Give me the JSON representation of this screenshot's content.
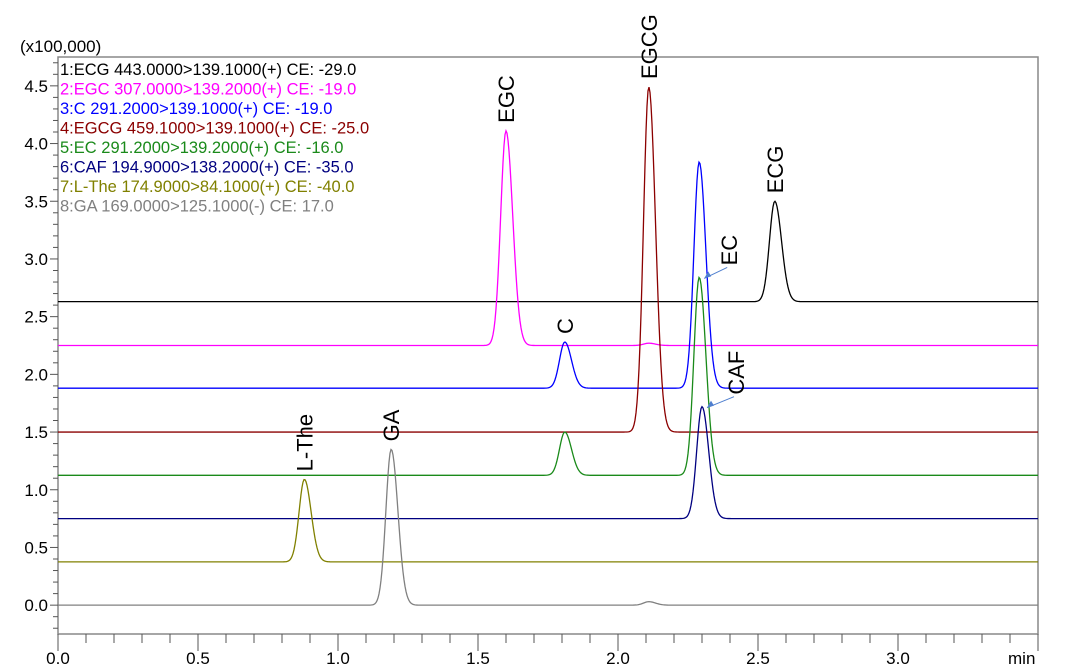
{
  "chart_data": {
    "type": "line",
    "ylabel_scale": "(x100,000)",
    "xunit": "min",
    "xlim": [
      0,
      3.5
    ],
    "ylim": [
      -0.25,
      4.75
    ],
    "xticks": [
      "0.0",
      "0.5",
      "1.0",
      "1.5",
      "2.0",
      "2.5",
      "3.0"
    ],
    "yticks": [
      "0.0",
      "0.5",
      "1.0",
      "1.5",
      "2.0",
      "2.5",
      "3.0",
      "3.5",
      "4.0",
      "4.5"
    ],
    "grid": false,
    "legend_placement": "top-left",
    "series": [
      {
        "name": "1:ECG 443.0000>139.1000(+) CE: -29.0",
        "color": "#000000",
        "baseline": 2.63,
        "peaks": [
          {
            "rt": 2.56,
            "apex": 3.5
          }
        ]
      },
      {
        "name": "2:EGC 307.0000>139.2000(+) CE: -19.0",
        "color": "#ff00ff",
        "baseline": 2.25,
        "peaks": [
          {
            "rt": 1.6,
            "apex": 4.11
          },
          {
            "rt": 2.11,
            "apex": 2.27
          }
        ]
      },
      {
        "name": "3:C 291.2000>139.1000(+) CE: -19.0",
        "color": "#0000ff",
        "baseline": 1.88,
        "peaks": [
          {
            "rt": 1.81,
            "apex": 2.28
          },
          {
            "rt": 2.29,
            "apex": 3.84
          }
        ]
      },
      {
        "name": "4:EGCG 459.1000>139.1000(+) CE: -25.0",
        "color": "#8b0000",
        "baseline": 1.5,
        "peaks": [
          {
            "rt": 2.11,
            "apex": 4.49
          }
        ]
      },
      {
        "name": "5:EC 291.2000>139.2000(+) CE: -16.0",
        "color": "#1a8a1a",
        "baseline": 1.125,
        "peaks": [
          {
            "rt": 1.81,
            "apex": 1.5
          },
          {
            "rt": 2.29,
            "apex": 2.84
          }
        ]
      },
      {
        "name": "6:CAF 194.9000>138.2000(+) CE: -35.0",
        "color": "#000080",
        "baseline": 0.75,
        "peaks": [
          {
            "rt": 2.3,
            "apex": 1.72
          }
        ]
      },
      {
        "name": "7:L-The 174.9000>84.1000(+) CE: -40.0",
        "color": "#808000",
        "baseline": 0.375,
        "peaks": [
          {
            "rt": 0.88,
            "apex": 1.09
          }
        ]
      },
      {
        "name": "8:GA 169.0000>125.1000(-) CE: 17.0",
        "color": "#808080",
        "baseline": 0.0,
        "peaks": [
          {
            "rt": 1.19,
            "apex": 1.35
          },
          {
            "rt": 2.11,
            "apex": 0.03
          }
        ]
      }
    ],
    "annotations": [
      {
        "text": "L-The",
        "rt": 0.88,
        "apex": 1.09
      },
      {
        "text": "GA",
        "rt": 1.19,
        "apex": 1.35
      },
      {
        "text": "EGC",
        "rt": 1.6,
        "apex": 4.11
      },
      {
        "text": "C",
        "rt": 1.81,
        "apex": 2.28
      },
      {
        "text": "EGCG",
        "rt": 2.11,
        "apex": 4.49
      },
      {
        "text": "EC",
        "rt": 2.29,
        "apex": 2.84,
        "arrow": true
      },
      {
        "text": "CAF",
        "rt": 2.3,
        "apex": 1.72,
        "arrow": true
      },
      {
        "text": "ECG",
        "rt": 2.56,
        "apex": 3.5
      }
    ],
    "arrow_color": "#4f7fcf"
  }
}
